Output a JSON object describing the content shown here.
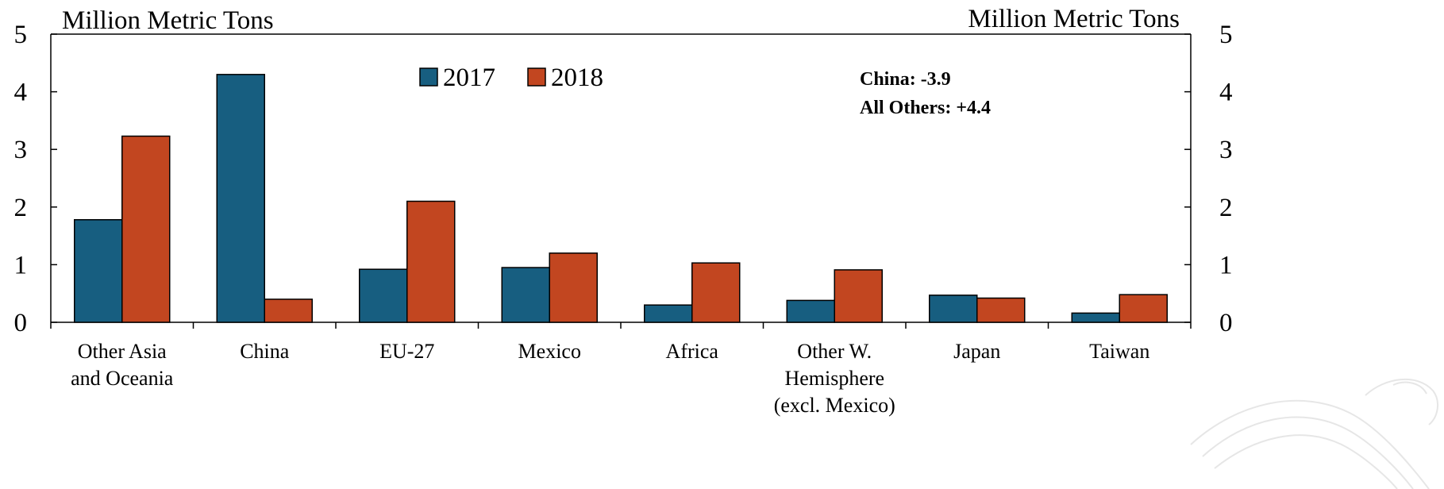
{
  "chart_data": {
    "type": "bar",
    "ylabel_left": "Million Metric Tons",
    "ylabel_right": "Million Metric Tons",
    "ylim": [
      0,
      5
    ],
    "yticks": [
      "0",
      "1",
      "2",
      "3",
      "4",
      "5"
    ],
    "categories": [
      [
        "Other Asia",
        "and Oceania"
      ],
      [
        "China"
      ],
      [
        "EU-27"
      ],
      [
        "Mexico"
      ],
      [
        "Africa"
      ],
      [
        "Other W.",
        "Hemisphere",
        "(excl. Mexico)"
      ],
      [
        "Japan"
      ],
      [
        "Taiwan"
      ]
    ],
    "series": [
      {
        "name": "2017",
        "color": "#175e80",
        "values": [
          1.78,
          4.3,
          0.92,
          0.95,
          0.3,
          0.38,
          0.47,
          0.16
        ]
      },
      {
        "name": "2018",
        "color": "#c24620",
        "values": [
          3.23,
          0.4,
          2.1,
          1.2,
          1.03,
          0.91,
          0.42,
          0.48
        ]
      }
    ],
    "annotations": [
      "China: -3.9",
      "All Others: +4.4"
    ],
    "legend_position": "top-center",
    "grid": false
  }
}
